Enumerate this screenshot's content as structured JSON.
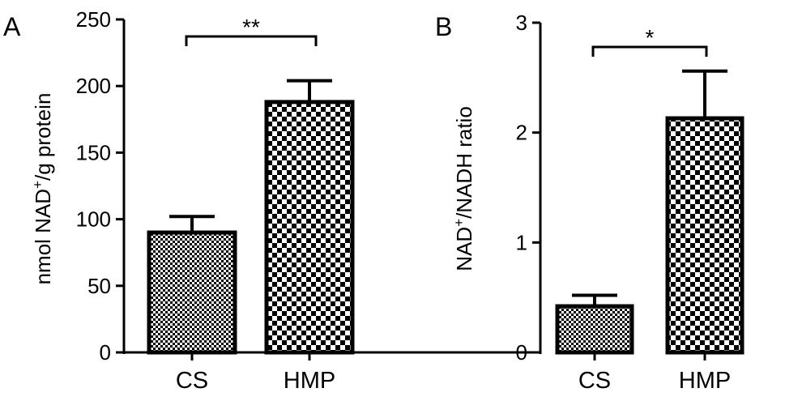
{
  "chart_data": [
    {
      "panel": "A",
      "type": "bar",
      "categories": [
        "CS",
        "HMP"
      ],
      "values": [
        90,
        188
      ],
      "errors": [
        12,
        16
      ],
      "ylabel_main": "nmol NAD",
      "ylabel_sup": "+",
      "ylabel_rest": "/g protein",
      "ylim": [
        0,
        250
      ],
      "yticks": [
        "0",
        "50",
        "100",
        "150",
        "200",
        "250"
      ],
      "ytick_values": [
        0,
        50,
        100,
        150,
        200,
        250
      ],
      "significance": "**",
      "patterns": [
        "fine-check",
        "coarse-check"
      ],
      "bar_color": "#000000",
      "grid": false
    },
    {
      "panel": "B",
      "type": "bar",
      "categories": [
        "CS",
        "HMP"
      ],
      "values": [
        0.42,
        2.13
      ],
      "errors": [
        0.1,
        0.43
      ],
      "ylabel_main": "NAD",
      "ylabel_sup": "+",
      "ylabel_rest": "/NADH ratio",
      "ylim": [
        0,
        3
      ],
      "yticks": [
        "0",
        "1",
        "2",
        "3"
      ],
      "ytick_values": [
        0,
        1,
        2,
        3
      ],
      "significance": "*",
      "patterns": [
        "fine-check",
        "coarse-check"
      ],
      "bar_color": "#000000",
      "grid": false
    }
  ]
}
